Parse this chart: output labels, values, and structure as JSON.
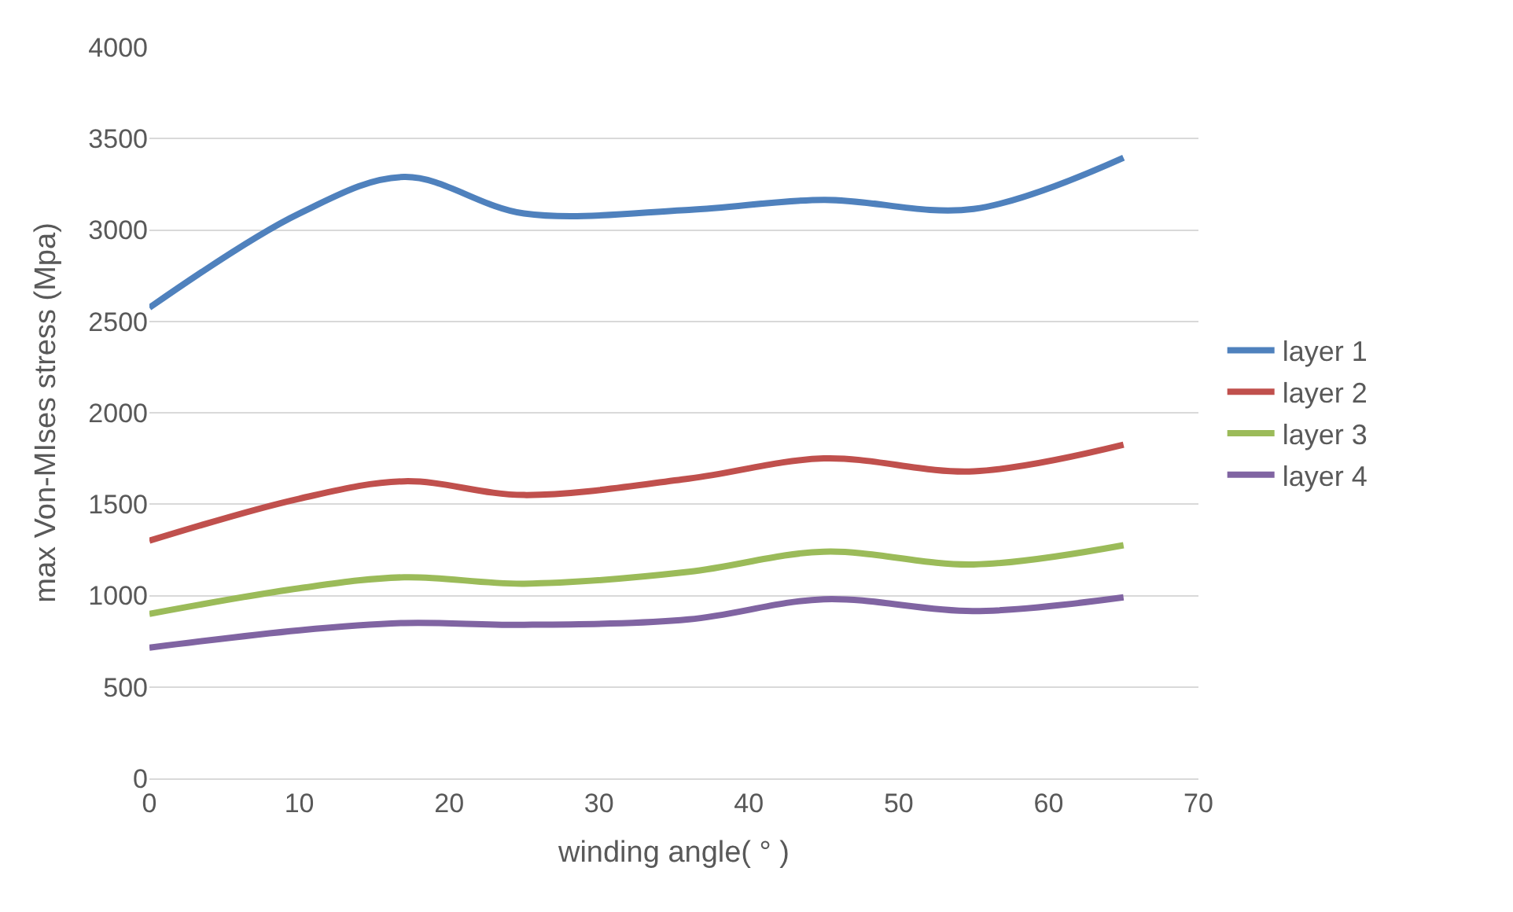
{
  "chart_data": {
    "type": "line",
    "xlabel": "winding angle( ° )",
    "ylabel": "max Von-MIses stress (Mpa)",
    "x": [
      0,
      10,
      17,
      25,
      36,
      45,
      55,
      65
    ],
    "series": [
      {
        "name": "layer 1",
        "color": "#4f81bd",
        "values": [
          2575,
          3090,
          3290,
          3090,
          3110,
          3165,
          3115,
          3395
        ]
      },
      {
        "name": "layer 2",
        "color": "#c0504d",
        "values": [
          1300,
          1530,
          1625,
          1550,
          1640,
          1750,
          1680,
          1825
        ]
      },
      {
        "name": "layer 3",
        "color": "#9bbb59",
        "values": [
          900,
          1040,
          1100,
          1065,
          1130,
          1240,
          1170,
          1275
        ]
      },
      {
        "name": "layer 4",
        "color": "#8064a2",
        "values": [
          715,
          810,
          850,
          840,
          870,
          980,
          915,
          990
        ]
      }
    ],
    "xlim": [
      0,
      70
    ],
    "xticks": [
      0,
      10,
      20,
      30,
      40,
      50,
      60,
      70
    ],
    "ylim": [
      0,
      4000
    ],
    "yticks": [
      0,
      500,
      1000,
      1500,
      2000,
      2500,
      3000,
      3500,
      4000
    ],
    "grid": "y",
    "legend": "right",
    "marker": "none",
    "line_style": "solid"
  }
}
